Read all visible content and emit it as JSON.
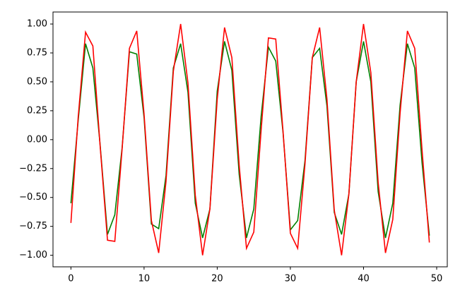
{
  "chart_data": {
    "type": "line",
    "x": [
      0,
      1,
      2,
      3,
      4,
      5,
      6,
      7,
      8,
      9,
      10,
      11,
      12,
      13,
      14,
      15,
      16,
      17,
      18,
      19,
      20,
      21,
      22,
      23,
      24,
      25,
      26,
      27,
      28,
      29,
      30,
      31,
      32,
      33,
      34,
      35,
      36,
      37,
      38,
      39,
      40,
      41,
      42,
      43,
      44,
      45,
      46,
      47,
      48,
      49
    ],
    "series": [
      {
        "color": "green",
        "values": [
          -0.55,
          0.17,
          0.83,
          0.62,
          -0.05,
          -0.82,
          -0.65,
          -0.07,
          0.76,
          0.74,
          0.19,
          -0.73,
          -0.77,
          -0.31,
          0.62,
          0.83,
          0.41,
          -0.55,
          -0.85,
          -0.6,
          0.42,
          0.85,
          0.6,
          -0.3,
          -0.85,
          -0.6,
          0.2,
          0.8,
          0.68,
          0.06,
          -0.78,
          -0.7,
          -0.18,
          0.71,
          0.79,
          0.29,
          -0.63,
          -0.82,
          -0.47,
          0.5,
          0.85,
          0.5,
          -0.45,
          -0.85,
          -0.55,
          0.3,
          0.83,
          0.62,
          -0.2,
          -0.83
        ]
      },
      {
        "color": "red",
        "values": [
          -0.72,
          0.2,
          0.93,
          0.81,
          -0.06,
          -0.87,
          -0.88,
          -0.08,
          0.79,
          0.94,
          0.22,
          -0.7,
          -0.98,
          -0.36,
          0.59,
          1.0,
          0.49,
          -0.48,
          -1.0,
          -0.6,
          0.35,
          0.97,
          0.71,
          -0.22,
          -0.94,
          -0.8,
          0.08,
          0.88,
          0.87,
          0.07,
          -0.81,
          -0.94,
          -0.21,
          0.71,
          0.97,
          0.35,
          -0.61,
          -1.0,
          -0.47,
          0.5,
          1.0,
          0.58,
          -0.37,
          -0.98,
          -0.69,
          0.23,
          0.94,
          0.79,
          -0.09,
          -0.89
        ]
      }
    ],
    "xlim": [
      -2.45,
      51.45
    ],
    "xticks": [
      0,
      10,
      20,
      30,
      40,
      50
    ],
    "ylim": [
      -1.1,
      1.104
    ],
    "yticks": [
      {
        "value": -1,
        "label": "−1.00"
      },
      {
        "value": -0.75,
        "label": "−0.75"
      },
      {
        "value": -0.5,
        "label": "−0.50"
      },
      {
        "value": -0.25,
        "label": "−0.25"
      },
      {
        "value": 0,
        "label": "0.00"
      },
      {
        "value": 0.25,
        "label": "0.25"
      },
      {
        "value": 0.5,
        "label": "0.50"
      },
      {
        "value": 0.75,
        "label": "0.75"
      },
      {
        "value": 1,
        "label": "1.00"
      }
    ],
    "grid": false
  }
}
